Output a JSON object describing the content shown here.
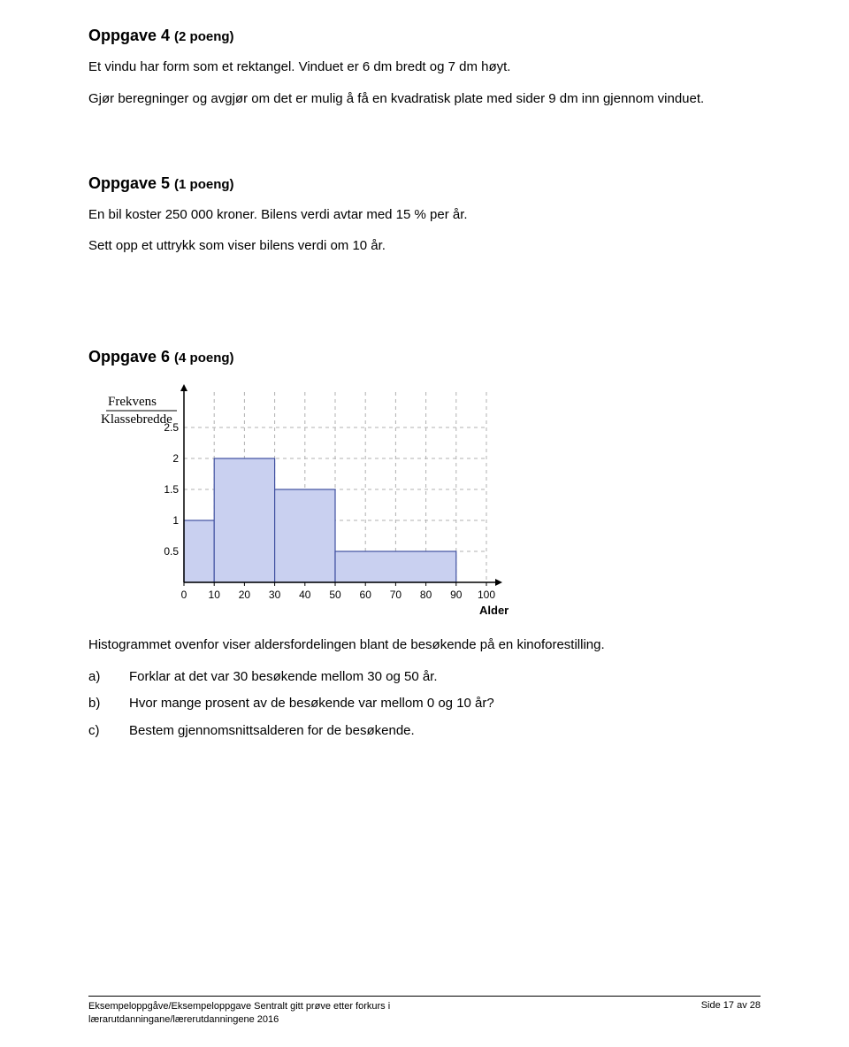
{
  "task4": {
    "heading": "Oppgave 4",
    "points": "(2 poeng)",
    "para1": "Et vindu har form som et rektangel. Vinduet er 6 dm bredt og 7 dm høyt.",
    "para2": "Gjør beregninger og avgjør om det er mulig å få en kvadratisk plate med sider 9 dm inn gjennom vinduet."
  },
  "task5": {
    "heading": "Oppgave 5",
    "points": "(1 poeng)",
    "para1": "En bil koster 250 000 kroner. Bilens verdi avtar med 15 % per år.",
    "para2": "Sett opp et uttrykk som viser bilens verdi om 10 år."
  },
  "task6": {
    "heading": "Oppgave 6",
    "points": "(4 poeng)",
    "ylabel_top": "Frekvens",
    "ylabel_bottom": "Klassebredde",
    "xlabel": "Alder",
    "chart": {
      "type": "histogram",
      "background_color": "#ffffff",
      "axis_color": "#000000",
      "grid_color": "#b0b0b0",
      "bar_fill": "#c9d0f0",
      "bar_stroke": "#4050a0",
      "xlim": [
        0,
        100
      ],
      "ylim": [
        0,
        3
      ],
      "xtick_step": 10,
      "yticks": [
        0.5,
        1,
        1.5,
        2,
        2.5
      ],
      "ytick_labels": [
        "0.5",
        "1",
        "1.5",
        "2",
        "2.5"
      ],
      "xtick_labels": [
        "0",
        "10",
        "20",
        "30",
        "40",
        "50",
        "60",
        "70",
        "80",
        "90",
        "100"
      ],
      "tick_fontsize": 12,
      "bars": [
        {
          "x0": 0,
          "x1": 10,
          "height": 1.0
        },
        {
          "x0": 10,
          "x1": 30,
          "height": 2.0
        },
        {
          "x0": 30,
          "x1": 50,
          "height": 1.5
        },
        {
          "x0": 50,
          "x1": 90,
          "height": 0.5
        }
      ]
    },
    "intro": "Histogrammet ovenfor viser aldersfordelingen blant de besøkende på en kinoforestilling.",
    "a_letter": "a)",
    "a_text": "Forklar at det var 30 besøkende mellom 30 og 50 år.",
    "b_letter": "b)",
    "b_text": "Hvor mange prosent av de besøkende var mellom 0 og 10 år?",
    "c_letter": "c)",
    "c_text": "Bestem gjennomsnittsalderen for de besøkende."
  },
  "footer": {
    "left_line1": "Eksempeloppgåve/Eksempeloppgave  Sentralt gitt prøve etter forkurs i",
    "left_line2": "lærarutdanningane/lærerutdanningene 2016",
    "right": "Side 17 av 28"
  }
}
